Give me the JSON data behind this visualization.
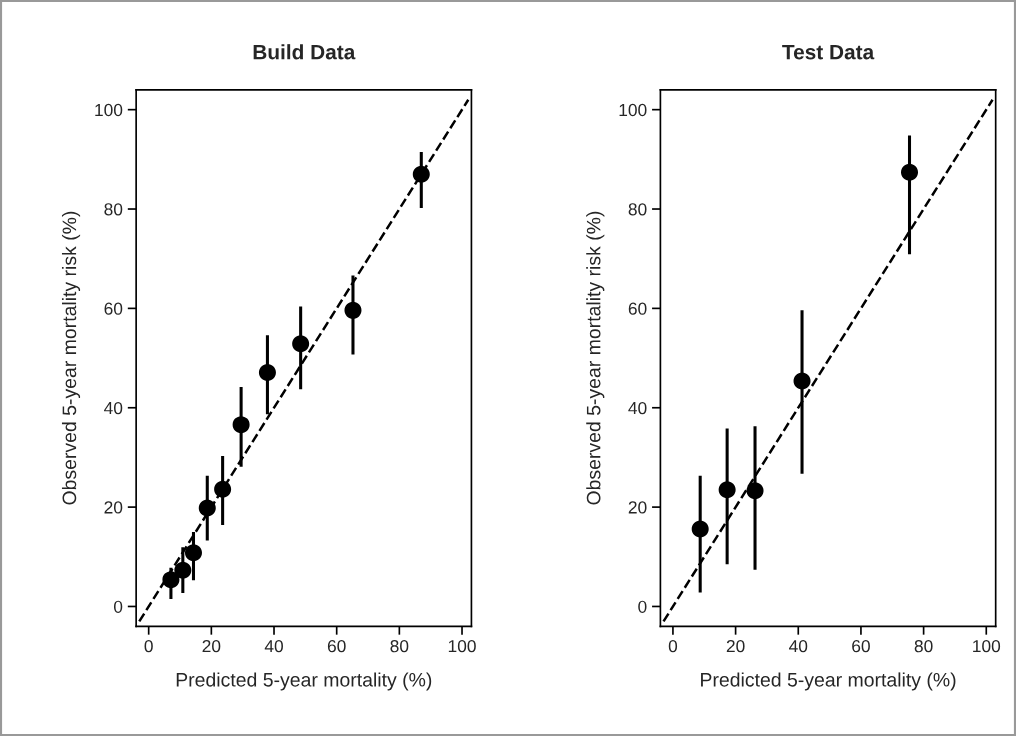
{
  "chart_data": [
    {
      "type": "scatter",
      "title": "Build Data",
      "xlabel": "Predicted 5-year mortality (%)",
      "ylabel": "Observed 5-year mortality risk (%)",
      "xlim": [
        -4,
        103
      ],
      "ylim": [
        -4,
        104
      ],
      "xticks": [
        0,
        20,
        40,
        60,
        80,
        100
      ],
      "yticks": [
        0,
        20,
        40,
        60,
        80,
        100
      ],
      "grid": false,
      "marker": "circle",
      "series": [
        {
          "color": "#000000",
          "x": [
            7.1,
            10.9,
            14.3,
            18.7,
            23.6,
            29.5,
            37.9,
            48.5,
            65.2,
            87.0
          ],
          "values": [
            5.4,
            7.3,
            10.8,
            19.8,
            23.6,
            36.6,
            47.1,
            52.9,
            59.6,
            87.0
          ],
          "errors": [
            [
              1.5,
              7.8
            ],
            [
              2.7,
              11.9
            ],
            [
              5.3,
              15.0
            ],
            [
              13.3,
              26.3
            ],
            [
              16.4,
              30.3
            ],
            [
              28.1,
              44.2
            ],
            [
              38.7,
              54.6
            ],
            [
              43.7,
              60.4
            ],
            [
              50.7,
              66.6
            ],
            [
              80.2,
              91.5
            ]
          ]
        },
        {
          "type": "line",
          "color": "#000000",
          "line_style": "dashed",
          "marker": "none",
          "x": [
            -3,
            102
          ],
          "values": [
            -3,
            102
          ]
        }
      ]
    },
    {
      "type": "scatter",
      "title": "Test Data",
      "xlabel": "Predicted 5-year mortality (%)",
      "ylabel": "Observed 5-year mortality risk (%)",
      "xlim": [
        -4,
        103
      ],
      "ylim": [
        -4,
        104
      ],
      "xticks": [
        0,
        20,
        40,
        60,
        80,
        100
      ],
      "yticks": [
        0,
        20,
        40,
        60,
        80,
        100
      ],
      "grid": false,
      "marker": "circle",
      "series": [
        {
          "color": "#000000",
          "x": [
            8.7,
            17.3,
            26.2,
            41.2,
            75.5
          ],
          "values": [
            15.6,
            23.5,
            23.3,
            45.4,
            87.4
          ],
          "errors": [
            [
              2.8,
              26.3
            ],
            [
              8.5,
              35.8
            ],
            [
              7.4,
              36.3
            ],
            [
              26.7,
              59.6
            ],
            [
              70.9,
              94.8
            ]
          ]
        },
        {
          "type": "line",
          "color": "#000000",
          "line_style": "dashed",
          "marker": "none",
          "x": [
            -3,
            102
          ],
          "values": [
            -3,
            102
          ]
        }
      ]
    }
  ]
}
